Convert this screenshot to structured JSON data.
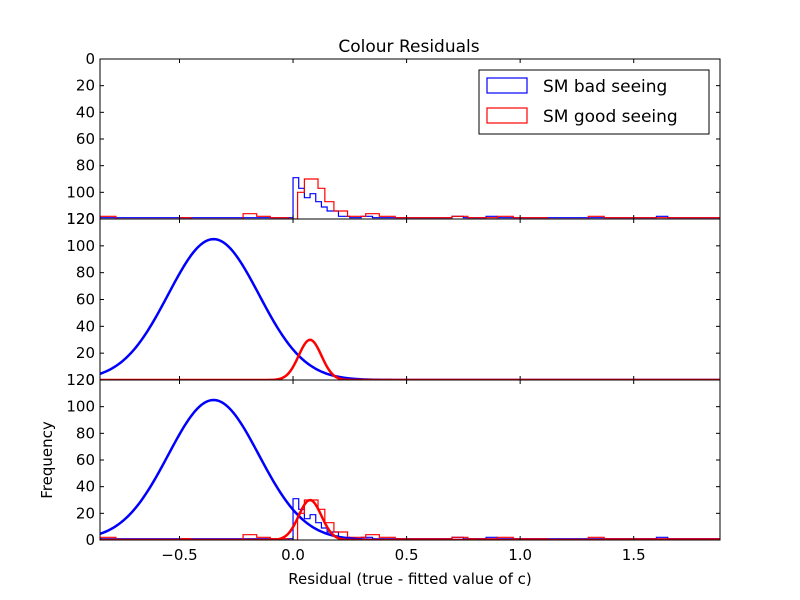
{
  "chart_data": {
    "type": "histogram",
    "title": "Colour Residuals",
    "xlabel": "Residual (true - fitted value of c)",
    "ylabel": "Frequency",
    "xlim": [
      -0.85,
      1.88
    ],
    "ylim": [
      0,
      120
    ],
    "x_ticks": [
      -0.5,
      0.0,
      0.5,
      1.0,
      1.5
    ],
    "x_tick_labels": [
      "−0.5",
      "0.0",
      "0.5",
      "1.0",
      "1.5"
    ],
    "y_ticks": [
      0,
      20,
      40,
      60,
      80,
      100,
      120
    ],
    "y_tick_labels": [
      "0",
      "20",
      "40",
      "60",
      "80",
      "100",
      "120"
    ],
    "top_panel_y_tick_labels": [
      "120",
      "100",
      "80",
      "60",
      "40",
      "20",
      "0"
    ],
    "grid": false,
    "legend_position": "upper right",
    "colors": {
      "bad": "#0000ff",
      "good": "#ff0000"
    },
    "legend": [
      {
        "label": "SM bad seeing",
        "color": "#0000ff"
      },
      {
        "label": "SM good seeing",
        "color": "#ff0000"
      }
    ],
    "histograms": [
      {
        "name": "SM bad seeing",
        "color": "#0000ff",
        "edges": [
          -0.85,
          0.0,
          0.025,
          0.05,
          0.075,
          0.1,
          0.125,
          0.15,
          0.2,
          0.25,
          0.3,
          0.35,
          0.4,
          0.45,
          0.7,
          0.75,
          0.85,
          0.9,
          1.6,
          1.65,
          1.88
        ],
        "counts": [
          1,
          31,
          23,
          16,
          19,
          13,
          9,
          6,
          2,
          1,
          2,
          1,
          1,
          1,
          2,
          1,
          2,
          1,
          2,
          1
        ]
      },
      {
        "name": "SM good seeing",
        "color": "#ff0000",
        "edges": [
          -0.85,
          -0.78,
          -0.5,
          -0.45,
          -0.22,
          -0.16,
          -0.1,
          -0.02,
          0.02,
          0.05,
          0.11,
          0.14,
          0.18,
          0.24,
          0.32,
          0.38,
          0.45,
          0.7,
          0.77,
          0.9,
          0.97,
          1.05,
          1.12,
          1.3,
          1.37,
          1.8,
          1.88
        ],
        "counts": [
          2,
          0,
          1,
          0,
          4,
          2,
          1,
          0,
          20,
          30,
          23,
          13,
          6,
          2,
          4,
          2,
          1,
          2,
          1,
          2,
          1,
          1,
          0,
          2,
          1,
          1
        ]
      }
    ],
    "fits": [
      {
        "name": "SM bad seeing",
        "color": "#0000ff",
        "type": "gaussian",
        "amplitude": 105,
        "mean": -0.35,
        "sigma": 0.2
      },
      {
        "name": "SM good seeing",
        "color": "#ff0000",
        "type": "gaussian",
        "amplitude": 30,
        "mean": 0.075,
        "sigma": 0.05
      }
    ],
    "panels": [
      {
        "name": "histograms",
        "show": [
          "histograms"
        ],
        "legend": true
      },
      {
        "name": "fits",
        "show": [
          "fits"
        ],
        "legend": false
      },
      {
        "name": "combined",
        "show": [
          "histograms",
          "fits"
        ],
        "legend": false
      }
    ]
  }
}
